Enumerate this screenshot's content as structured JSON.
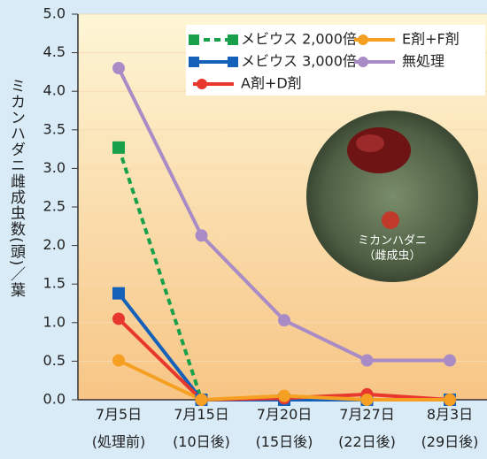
{
  "chart_data": {
    "type": "line",
    "y_label": "ミカンハダニ雌成虫数(頭)／葉",
    "categories": [
      "7月5日\n(処理前)",
      "7月15日\n(10日後)",
      "7月20日\n(15日後)",
      "7月27日\n(22日後)",
      "8月3日\n(29日後)"
    ],
    "series": [
      {
        "name": "メビウス 2,000倍",
        "color": "#18a04a",
        "linestyle": "dashed",
        "marker": "square",
        "values": [
          3.27,
          0,
          0,
          0,
          0
        ]
      },
      {
        "name": "メビウス 3,000倍",
        "color": "#1560b8",
        "linestyle": "solid",
        "marker": "square",
        "values": [
          1.38,
          0,
          0,
          0,
          0
        ]
      },
      {
        "name": "A剤+D剤",
        "color": "#e8382e",
        "linestyle": "solid",
        "marker": "circle",
        "values": [
          1.05,
          0,
          0.02,
          0.07,
          0
        ]
      },
      {
        "name": "E剤+F剤",
        "color": "#f5a023",
        "linestyle": "solid",
        "marker": "circle",
        "values": [
          0.51,
          0,
          0.05,
          0,
          0
        ]
      },
      {
        "name": "無処理",
        "color": "#a98bc6",
        "linestyle": "solid",
        "marker": "circle",
        "values": [
          4.3,
          2.13,
          1.03,
          0.51,
          0.51
        ]
      }
    ],
    "ylim": [
      0,
      5
    ],
    "yticks": [
      {
        "value": 0,
        "label": "0.0"
      },
      {
        "value": 0.5,
        "label": "0.5"
      },
      {
        "value": 1,
        "label": "1.0"
      },
      {
        "value": 1.5,
        "label": "1.5"
      },
      {
        "value": 2,
        "label": "2.0"
      },
      {
        "value": 2.5,
        "label": "2.5"
      },
      {
        "value": 3,
        "label": "3.0"
      },
      {
        "value": 3.5,
        "label": "3.5"
      },
      {
        "value": 4,
        "label": "4.0"
      },
      {
        "value": 4.5,
        "label": "4.5"
      },
      {
        "value": 5,
        "label": "5.0"
      }
    ],
    "grid": true,
    "legend": "top-right",
    "photo_caption": "ミカンハダニ\n（雌成虫）"
  }
}
